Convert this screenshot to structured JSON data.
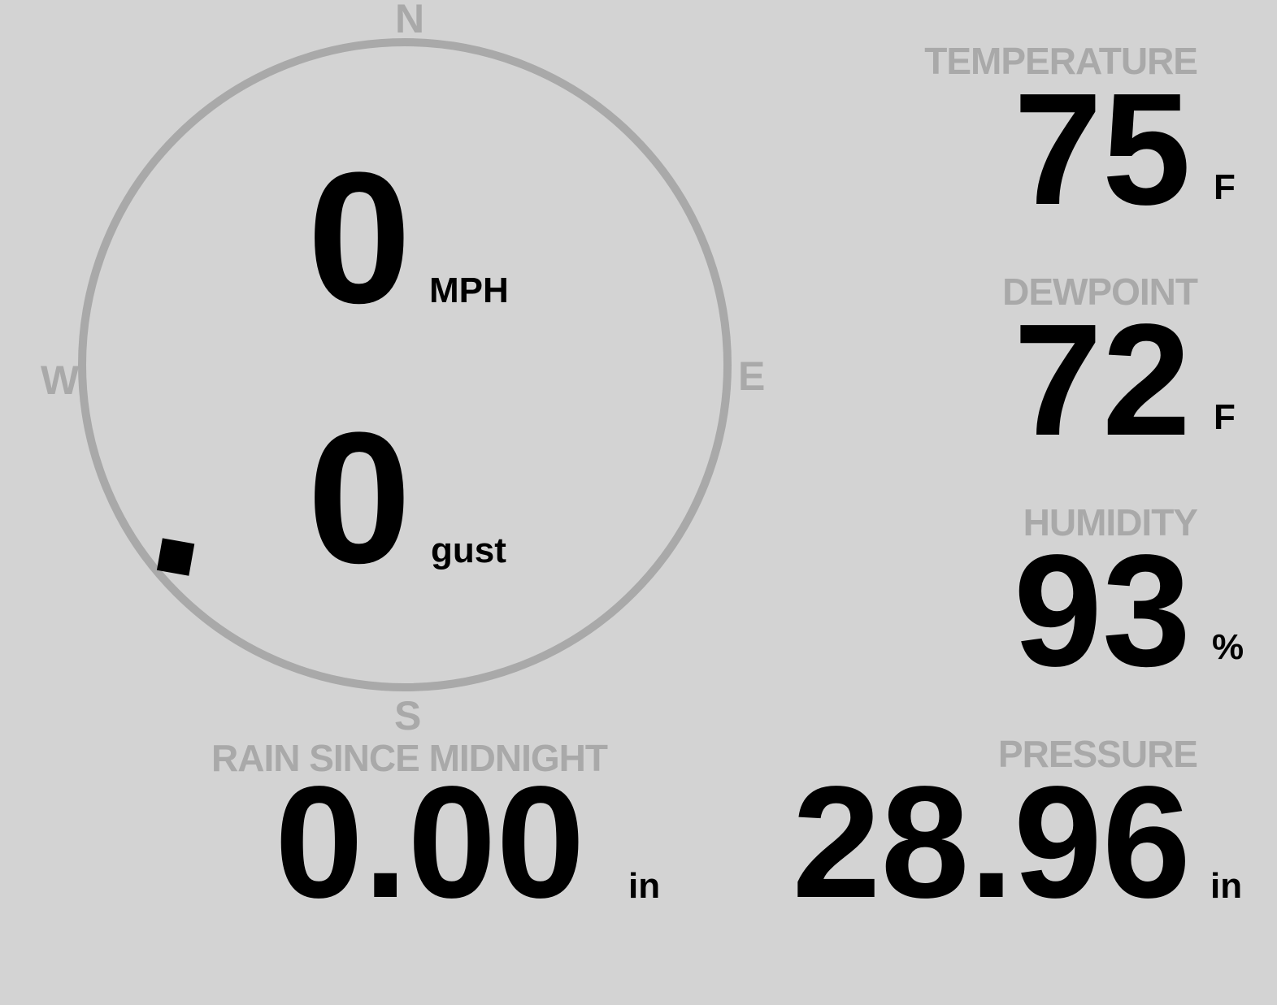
{
  "colors": {
    "background": "#d3d3d3",
    "label": "#a9a9a9",
    "value": "#000000"
  },
  "wind": {
    "compass": {
      "north": "N",
      "south": "S",
      "east": "E",
      "west": "W"
    },
    "direction_degrees": 230,
    "speed": "0",
    "speed_unit": "MPH",
    "gust": "0",
    "gust_unit": "gust"
  },
  "temperature": {
    "label": "TEMPERATURE",
    "value": "75",
    "unit": "F"
  },
  "dewpoint": {
    "label": "DEWPOINT",
    "value": "72",
    "unit": "F"
  },
  "humidity": {
    "label": "HUMIDITY",
    "value": "93",
    "unit": "%"
  },
  "rain": {
    "label": "RAIN SINCE MIDNIGHT",
    "value": "0.00",
    "unit": "in"
  },
  "pressure": {
    "label": "PRESSURE",
    "value": "28.96",
    "unit": "in"
  }
}
